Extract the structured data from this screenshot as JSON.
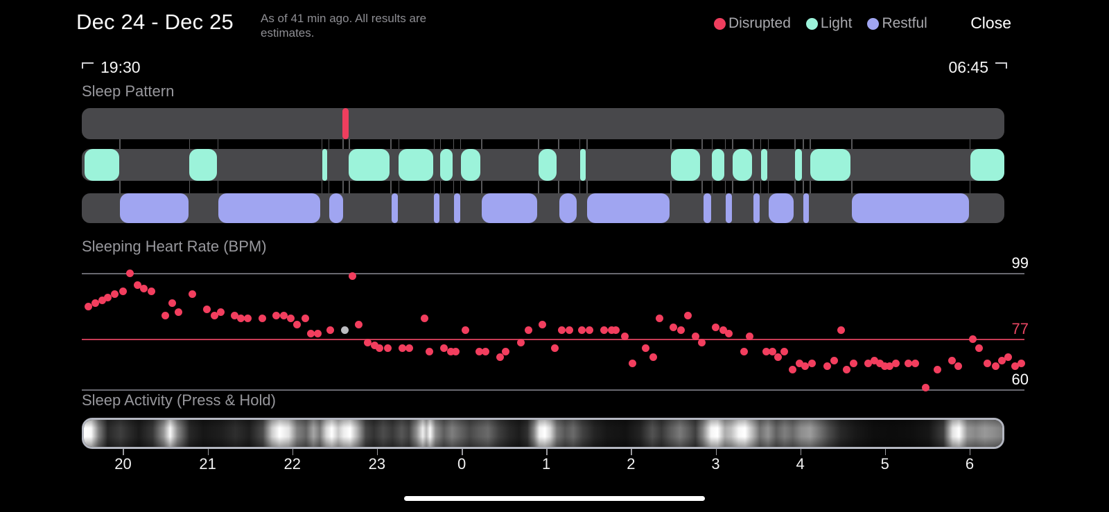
{
  "header": {
    "title": "Dec 24 - Dec 25",
    "subtitle": "As of 41 min ago. All results are estimates.",
    "close_label": "Close",
    "legend": [
      {
        "label": "Disrupted",
        "color": "#ef3e5e"
      },
      {
        "label": "Light",
        "color": "#9cf3da"
      },
      {
        "label": "Restful",
        "color": "#a0a5f1"
      }
    ]
  },
  "time_window": {
    "start": "19:30",
    "end": "06:45"
  },
  "sections": {
    "pattern_title": "Sleep Pattern",
    "heart_rate_title": "Sleeping Heart Rate (BPM)",
    "activity_title": "Sleep Activity (Press & Hold)"
  },
  "x_axis": {
    "labels": [
      "20",
      "21",
      "22",
      "23",
      "0",
      "1",
      "2",
      "3",
      "4",
      "5",
      "6"
    ],
    "positions_pct": [
      4.47,
      13.65,
      22.82,
      32.0,
      41.18,
      50.35,
      59.53,
      68.71,
      77.88,
      87.06,
      96.24
    ]
  },
  "chart_data": [
    {
      "name": "sleep_pattern",
      "type": "heatmap",
      "title": "Sleep Pattern",
      "rows": [
        "Disrupted",
        "Light",
        "Restful"
      ],
      "track_color": "#48484b",
      "disrupted": {
        "color": "#ef3e5e",
        "segments": [
          {
            "l": 28.25,
            "w": 0.68
          }
        ]
      },
      "light": {
        "color": "#9cf3da",
        "segments": [
          {
            "l": 0.3,
            "w": 3.76
          },
          {
            "l": 11.65,
            "w": 3.0
          },
          {
            "l": 26.07,
            "w": 0.53
          },
          {
            "l": 28.93,
            "w": 4.43
          },
          {
            "l": 34.34,
            "w": 3.76
          },
          {
            "l": 38.84,
            "w": 1.35
          },
          {
            "l": 41.1,
            "w": 2.1
          },
          {
            "l": 49.51,
            "w": 1.95
          },
          {
            "l": 54.02,
            "w": 0.6
          },
          {
            "l": 63.86,
            "w": 3.16
          },
          {
            "l": 68.29,
            "w": 1.35
          },
          {
            "l": 70.55,
            "w": 2.1
          },
          {
            "l": 73.63,
            "w": 0.68
          },
          {
            "l": 77.31,
            "w": 0.75
          },
          {
            "l": 78.96,
            "w": 4.36
          },
          {
            "l": 96.32,
            "w": 3.68
          }
        ]
      },
      "restful": {
        "color": "#a0a5f1",
        "segments": [
          {
            "l": 4.13,
            "w": 7.44
          },
          {
            "l": 14.8,
            "w": 11.04
          },
          {
            "l": 26.82,
            "w": 1.5
          },
          {
            "l": 33.58,
            "w": 0.68
          },
          {
            "l": 38.17,
            "w": 0.6
          },
          {
            "l": 40.35,
            "w": 0.68
          },
          {
            "l": 43.35,
            "w": 6.01
          },
          {
            "l": 51.77,
            "w": 1.88
          },
          {
            "l": 54.77,
            "w": 8.94
          },
          {
            "l": 67.39,
            "w": 0.83
          },
          {
            "l": 69.8,
            "w": 0.68
          },
          {
            "l": 72.8,
            "w": 0.68
          },
          {
            "l": 74.46,
            "w": 2.7
          },
          {
            "l": 78.21,
            "w": 0.6
          },
          {
            "l": 83.47,
            "w": 12.7
          }
        ]
      },
      "connectors_pct": [
        4.09,
        11.61,
        14.69,
        25.96,
        26.71,
        28.25,
        28.93,
        33.47,
        34.3,
        38.13,
        38.81,
        40.27,
        41.02,
        43.28,
        49.44,
        51.62,
        53.94,
        54.7,
        63.79,
        67.17,
        68.26,
        69.72,
        70.51,
        72.73,
        73.55,
        74.38,
        77.24,
        78.14,
        78.89,
        83.4,
        96.24
      ]
    },
    {
      "name": "sleeping_heart_rate",
      "type": "scatter",
      "title": "Sleeping Heart Rate (BPM)",
      "ylabel": "BPM",
      "ylim": [
        58,
        101
      ],
      "xlim_hours": [
        19.51,
        30.65
      ],
      "grid": false,
      "point_color": "#f23e5e",
      "reference_lines": [
        {
          "value": 99,
          "line_color": "#696970",
          "label_color": "#ffffff"
        },
        {
          "value": 77,
          "line_color": "#c63b55",
          "label_color": "#ea4663"
        },
        {
          "value": 60,
          "line_color": "#696970",
          "label_color": "#ffffff"
        }
      ],
      "points": [
        [
          19.59,
          88
        ],
        [
          19.67,
          89
        ],
        [
          19.75,
          90
        ],
        [
          19.82,
          91
        ],
        [
          19.9,
          92
        ],
        [
          20.0,
          93
        ],
        [
          20.08,
          99
        ],
        [
          20.17,
          95
        ],
        [
          20.24,
          94
        ],
        [
          20.33,
          93
        ],
        [
          20.5,
          85
        ],
        [
          20.58,
          89
        ],
        [
          20.65,
          86
        ],
        [
          20.82,
          92
        ],
        [
          20.99,
          87
        ],
        [
          21.08,
          85
        ],
        [
          21.15,
          86
        ],
        [
          21.32,
          85
        ],
        [
          21.39,
          84
        ],
        [
          21.47,
          84
        ],
        [
          21.64,
          84
        ],
        [
          21.81,
          85
        ],
        [
          21.9,
          85
        ],
        [
          21.98,
          84
        ],
        [
          22.05,
          82
        ],
        [
          22.15,
          84
        ],
        [
          22.22,
          79
        ],
        [
          22.3,
          79
        ],
        [
          22.45,
          80
        ],
        [
          22.71,
          98
        ],
        [
          22.78,
          82
        ],
        [
          22.89,
          76
        ],
        [
          22.97,
          75
        ],
        [
          23.03,
          74
        ],
        [
          23.13,
          74
        ],
        [
          23.3,
          74
        ],
        [
          23.38,
          74
        ],
        [
          23.56,
          84
        ],
        [
          23.62,
          73
        ],
        [
          23.79,
          74
        ],
        [
          23.87,
          73
        ],
        [
          23.93,
          73
        ],
        [
          24.04,
          80
        ],
        [
          24.21,
          73
        ],
        [
          24.28,
          73
        ],
        [
          24.45,
          71
        ],
        [
          24.52,
          73
        ],
        [
          24.7,
          76
        ],
        [
          24.79,
          80
        ],
        [
          24.95,
          82
        ],
        [
          25.1,
          74
        ],
        [
          25.18,
          80
        ],
        [
          25.27,
          80
        ],
        [
          25.42,
          80
        ],
        [
          25.51,
          80
        ],
        [
          25.68,
          80
        ],
        [
          25.77,
          80
        ],
        [
          25.82,
          80
        ],
        [
          25.93,
          78
        ],
        [
          26.02,
          69
        ],
        [
          26.17,
          74
        ],
        [
          26.26,
          71
        ],
        [
          26.34,
          84
        ],
        [
          26.5,
          81
        ],
        [
          26.59,
          80
        ],
        [
          26.67,
          85
        ],
        [
          26.76,
          78
        ],
        [
          26.84,
          76
        ],
        [
          27.0,
          81
        ],
        [
          27.09,
          80
        ],
        [
          27.16,
          79
        ],
        [
          27.34,
          73
        ],
        [
          27.4,
          78
        ],
        [
          27.6,
          73
        ],
        [
          27.67,
          73
        ],
        [
          27.74,
          71
        ],
        [
          27.81,
          73
        ],
        [
          27.91,
          67
        ],
        [
          27.99,
          69
        ],
        [
          28.06,
          68
        ],
        [
          28.14,
          69
        ],
        [
          28.32,
          68
        ],
        [
          28.4,
          70
        ],
        [
          28.48,
          80
        ],
        [
          28.55,
          67
        ],
        [
          28.63,
          69
        ],
        [
          28.8,
          69
        ],
        [
          28.88,
          70
        ],
        [
          28.94,
          69
        ],
        [
          29.0,
          68
        ],
        [
          29.06,
          68
        ],
        [
          29.13,
          69
        ],
        [
          29.28,
          69
        ],
        [
          29.36,
          69
        ],
        [
          29.48,
          61
        ],
        [
          29.62,
          67
        ],
        [
          29.79,
          70
        ],
        [
          29.87,
          68
        ],
        [
          30.04,
          77
        ],
        [
          30.11,
          74
        ],
        [
          30.21,
          69
        ],
        [
          30.31,
          68
        ],
        [
          30.38,
          70
        ],
        [
          30.46,
          71
        ],
        [
          30.54,
          68
        ],
        [
          30.61,
          69
        ]
      ],
      "highlight_point": {
        "t": 22.62,
        "bpm": 80,
        "color": "#bcbcc0"
      }
    },
    {
      "name": "sleep_activity",
      "type": "heatmap",
      "title": "Sleep Activity (Press & Hold)",
      "border_color": "#b4b7c1",
      "gradient_stops": [
        [
          0,
          255
        ],
        [
          0.8,
          250
        ],
        [
          1.6,
          130
        ],
        [
          2.6,
          40
        ],
        [
          4,
          62
        ],
        [
          5,
          42
        ],
        [
          6,
          26
        ],
        [
          7.5,
          55
        ],
        [
          8.7,
          150
        ],
        [
          9.4,
          248
        ],
        [
          10.2,
          140
        ],
        [
          11.5,
          40
        ],
        [
          13,
          22
        ],
        [
          15,
          30
        ],
        [
          16.5,
          46
        ],
        [
          18,
          30
        ],
        [
          19.5,
          75
        ],
        [
          20.5,
          205
        ],
        [
          21.3,
          255
        ],
        [
          22.3,
          228
        ],
        [
          23.2,
          130
        ],
        [
          24.2,
          100
        ],
        [
          25,
          165
        ],
        [
          25.7,
          120
        ],
        [
          26.4,
          215
        ],
        [
          27,
          255
        ],
        [
          27.7,
          200
        ],
        [
          28.3,
          238
        ],
        [
          29,
          255
        ],
        [
          29.8,
          175
        ],
        [
          30.7,
          70
        ],
        [
          31.6,
          50
        ],
        [
          32.6,
          76
        ],
        [
          33.6,
          56
        ],
        [
          34.6,
          86
        ],
        [
          35.4,
          66
        ],
        [
          36.2,
          140
        ],
        [
          36.9,
          238
        ],
        [
          37.3,
          185
        ],
        [
          37.7,
          250
        ],
        [
          38.3,
          140
        ],
        [
          39.2,
          92
        ],
        [
          40.1,
          126
        ],
        [
          41,
          100
        ],
        [
          42,
          72
        ],
        [
          43,
          92
        ],
        [
          44,
          106
        ],
        [
          45.2,
          62
        ],
        [
          46.3,
          40
        ],
        [
          47.4,
          28
        ],
        [
          48.3,
          48
        ],
        [
          49,
          130
        ],
        [
          49.6,
          240
        ],
        [
          50.2,
          255
        ],
        [
          50.8,
          215
        ],
        [
          51.5,
          120
        ],
        [
          52.4,
          86
        ],
        [
          53.3,
          106
        ],
        [
          54.3,
          66
        ],
        [
          55.6,
          36
        ],
        [
          57,
          22
        ],
        [
          59,
          18
        ],
        [
          60.6,
          36
        ],
        [
          61.9,
          82
        ],
        [
          62.9,
          56
        ],
        [
          63.9,
          92
        ],
        [
          64.9,
          122
        ],
        [
          65.7,
          96
        ],
        [
          66.6,
          62
        ],
        [
          67.4,
          132
        ],
        [
          68.3,
          246
        ],
        [
          69,
          255
        ],
        [
          69.8,
          172
        ],
        [
          70.5,
          192
        ],
        [
          71.3,
          246
        ],
        [
          72,
          255
        ],
        [
          72.8,
          186
        ],
        [
          73.6,
          112
        ],
        [
          74.5,
          146
        ],
        [
          75.4,
          96
        ],
        [
          76.3,
          126
        ],
        [
          77.2,
          106
        ],
        [
          78.1,
          142
        ],
        [
          79.1,
          156
        ],
        [
          80.1,
          116
        ],
        [
          81.1,
          76
        ],
        [
          82.4,
          40
        ],
        [
          84,
          24
        ],
        [
          86,
          14
        ],
        [
          88,
          12
        ],
        [
          90,
          14
        ],
        [
          92,
          22
        ],
        [
          93.6,
          62
        ],
        [
          94.6,
          228
        ],
        [
          95.3,
          255
        ],
        [
          96.2,
          150
        ],
        [
          97.1,
          136
        ],
        [
          98.1,
          152
        ],
        [
          99,
          142
        ],
        [
          100,
          126
        ]
      ]
    }
  ]
}
